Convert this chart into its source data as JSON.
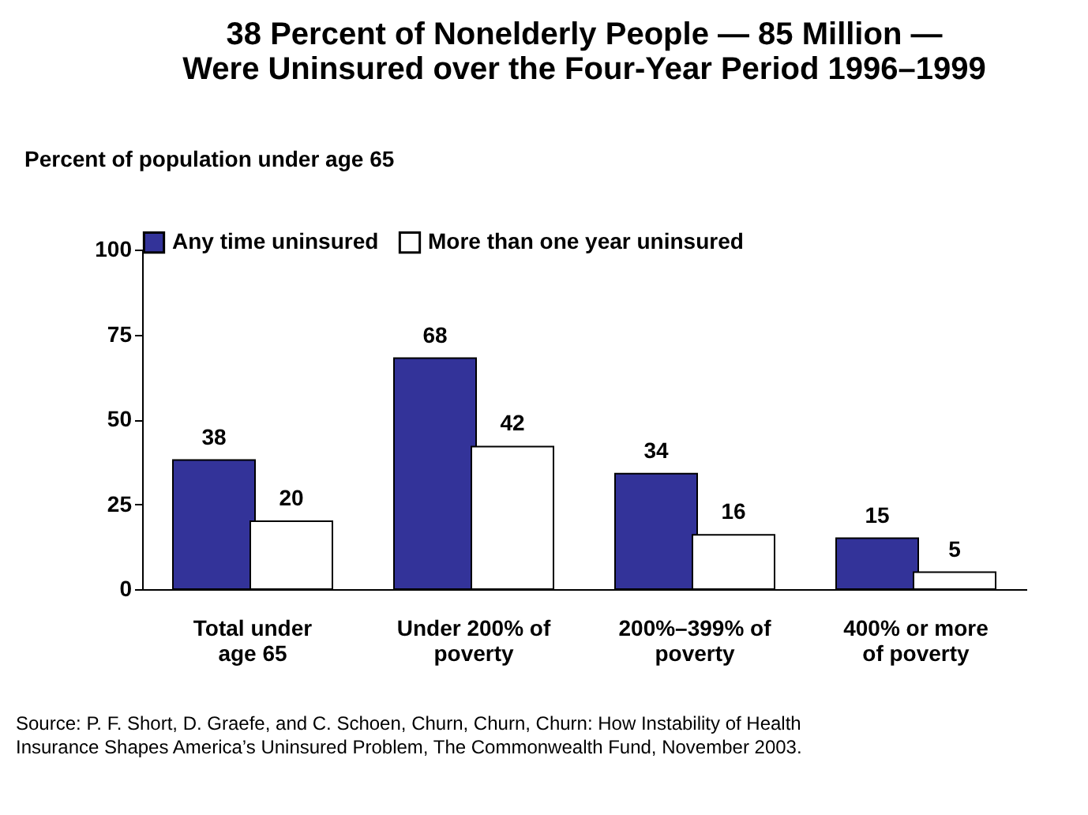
{
  "chart_data": {
    "type": "bar",
    "title": "38 Percent of Nonelderly People — 85 Million — Were Uninsured over the Four-Year Period 1996–1999",
    "ylabel": "Percent of population under age 65",
    "categories": [
      "Total under age 65",
      "Under 200% of poverty",
      "200%–399% of poverty",
      "400% or more of poverty"
    ],
    "series": [
      {
        "name": "Any time uninsured",
        "color": "#333399",
        "values": [
          38,
          68,
          34,
          15
        ]
      },
      {
        "name": "More than one year uninsured",
        "color": "#ffffff",
        "values": [
          20,
          42,
          16,
          5
        ]
      }
    ],
    "ylim": [
      0,
      100
    ],
    "yticks": [
      0,
      25,
      50,
      75,
      100
    ],
    "grid": false,
    "legend": "top",
    "data_labels": true,
    "annotations": [
      "Source: P. F. Short, D. Graefe, and C. Schoen, Churn, Churn, Churn: How Instability of Health Insurance Shapes America’s Uninsured Problem, The Commonwealth Fund, November 2003."
    ]
  }
}
